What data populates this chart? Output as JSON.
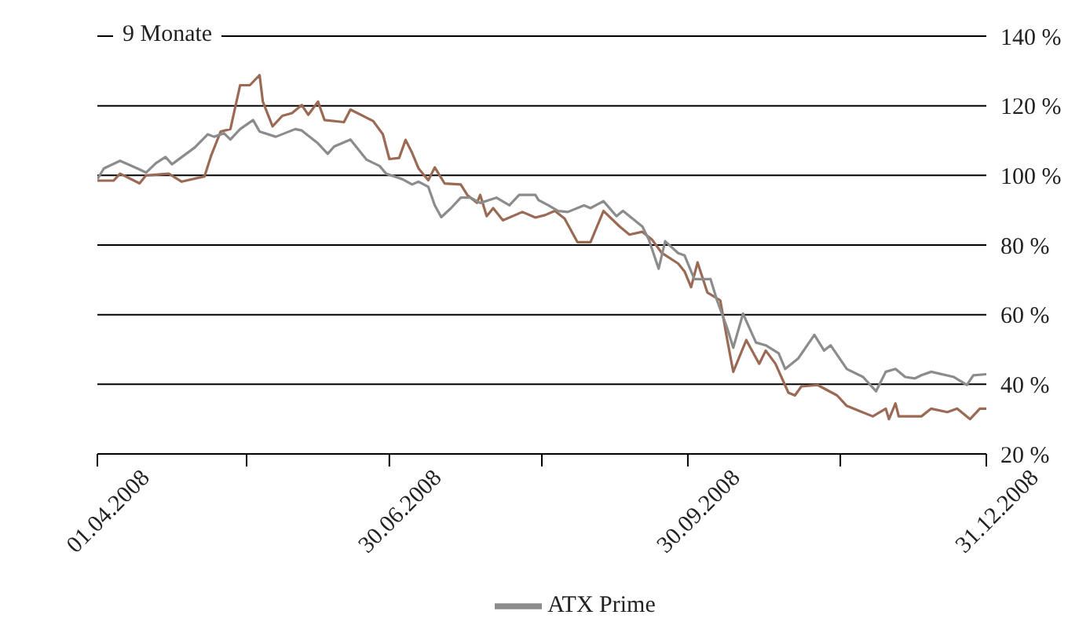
{
  "chart_data": {
    "type": "line",
    "title": "9 Monate",
    "xlim": [
      "2008-04-01",
      "2008-12-31"
    ],
    "xticks": [
      {
        "value": "2008-04-01",
        "label": "01.04.2008"
      },
      {
        "value": "2008-05-17",
        "label": null
      },
      {
        "value": "2008-06-30",
        "label": "30.06.2008"
      },
      {
        "value": "2008-08-16",
        "label": null
      },
      {
        "value": "2008-09-30",
        "label": "30.09.2008"
      },
      {
        "value": "2008-11-16",
        "label": null
      },
      {
        "value": "2008-12-31",
        "label": "31.12.2008"
      }
    ],
    "ylim": [
      20,
      140
    ],
    "yticks": [
      {
        "value": 20,
        "label": "20 %"
      },
      {
        "value": 40,
        "label": "40 %"
      },
      {
        "value": 60,
        "label": "60 %"
      },
      {
        "value": 80,
        "label": "80 %"
      },
      {
        "value": 100,
        "label": "100 %"
      },
      {
        "value": 120,
        "label": "120 %"
      },
      {
        "value": 140,
        "label": "140 %"
      }
    ],
    "grid": "y",
    "legend": "bottom",
    "marker": "none",
    "line_style": "solid",
    "series": [
      {
        "color": "#9b6a55",
        "x": [
          "2008-04-01",
          "2008-04-06",
          "2008-04-08",
          "2008-04-14",
          "2008-04-16",
          "2008-04-23",
          "2008-04-27",
          "2008-05-04",
          "2008-05-06",
          "2008-05-09",
          "2008-05-12",
          "2008-05-15",
          "2008-05-18",
          "2008-05-21",
          "2008-05-22",
          "2008-05-25",
          "2008-05-28",
          "2008-05-31",
          "2008-06-03",
          "2008-06-05",
          "2008-06-08",
          "2008-06-10",
          "2008-06-16",
          "2008-06-18",
          "2008-06-25",
          "2008-06-28",
          "2008-06-30",
          "2008-07-03",
          "2008-07-05",
          "2008-07-07",
          "2008-07-09",
          "2008-07-12",
          "2008-07-14",
          "2008-07-17",
          "2008-07-22",
          "2008-07-24",
          "2008-07-27",
          "2008-07-28",
          "2008-07-30",
          "2008-08-01",
          "2008-08-04",
          "2008-08-10",
          "2008-08-14",
          "2008-08-17",
          "2008-08-20",
          "2008-08-23",
          "2008-08-27",
          "2008-08-31",
          "2008-09-04",
          "2008-09-09",
          "2008-09-12",
          "2008-09-16",
          "2008-09-19",
          "2008-09-22",
          "2008-09-27",
          "2008-09-29",
          "2008-10-01",
          "2008-10-03",
          "2008-10-06",
          "2008-10-10",
          "2008-10-12",
          "2008-10-14",
          "2008-10-18",
          "2008-10-22",
          "2008-10-24",
          "2008-10-27",
          "2008-10-31",
          "2008-11-02",
          "2008-11-04",
          "2008-11-09",
          "2008-11-15",
          "2008-11-18",
          "2008-11-22",
          "2008-11-26",
          "2008-11-30",
          "2008-12-01",
          "2008-12-03",
          "2008-12-04",
          "2008-12-11",
          "2008-12-14",
          "2008-12-19",
          "2008-12-22",
          "2008-12-26",
          "2008-12-29",
          "2008-12-31"
        ],
        "values": [
          98.5,
          98.5,
          100.5,
          97.7,
          100,
          100.5,
          98.2,
          99.7,
          105.5,
          112.6,
          113.3,
          125.9,
          125.9,
          128.8,
          121.2,
          114.1,
          117.1,
          117.9,
          120.2,
          117.4,
          121.2,
          115.9,
          115.3,
          118.9,
          115.6,
          111.8,
          104.7,
          105,
          110.2,
          106.5,
          102,
          98.6,
          102.3,
          97.7,
          97.4,
          94.4,
          92.1,
          94.4,
          88.3,
          90.6,
          87.1,
          89.5,
          87.9,
          88.6,
          89.8,
          87.6,
          80.8,
          80.8,
          89.8,
          85.3,
          83,
          83.8,
          81.5,
          77.7,
          74.7,
          72.4,
          67.9,
          75,
          66.4,
          64.1,
          53.5,
          43.6,
          52.7,
          45.9,
          49.7,
          45.9,
          37.6,
          36.8,
          39.4,
          39.8,
          36.8,
          33.8,
          32.3,
          30.8,
          33,
          30,
          34.5,
          30.8,
          30.8,
          33,
          32,
          33,
          30,
          33,
          33
        ]
      },
      {
        "name": "ATX Prime",
        "color": "#8c8c8c",
        "x": [
          "2008-04-01",
          "2008-04-03",
          "2008-04-08",
          "2008-04-14",
          "2008-04-16",
          "2008-04-19",
          "2008-04-22",
          "2008-04-24",
          "2008-05-01",
          "2008-05-05",
          "2008-05-07",
          "2008-05-10",
          "2008-05-12",
          "2008-05-15",
          "2008-05-19",
          "2008-05-21",
          "2008-05-26",
          "2008-06-01",
          "2008-06-03",
          "2008-06-08",
          "2008-06-11",
          "2008-06-13",
          "2008-06-18",
          "2008-06-23",
          "2008-06-27",
          "2008-06-29",
          "2008-07-04",
          "2008-07-07",
          "2008-07-09",
          "2008-07-12",
          "2008-07-14",
          "2008-07-16",
          "2008-07-19",
          "2008-07-22",
          "2008-07-25",
          "2008-07-28",
          "2008-08-02",
          "2008-08-06",
          "2008-08-09",
          "2008-08-14",
          "2008-08-15",
          "2008-08-18",
          "2008-08-21",
          "2008-08-24",
          "2008-08-29",
          "2008-08-31",
          "2008-09-04",
          "2008-09-08",
          "2008-09-10",
          "2008-09-16",
          "2008-09-18",
          "2008-09-21",
          "2008-09-23",
          "2008-09-27",
          "2008-09-29",
          "2008-10-02",
          "2008-10-07",
          "2008-10-09",
          "2008-10-12",
          "2008-10-14",
          "2008-10-17",
          "2008-10-21",
          "2008-10-24",
          "2008-10-28",
          "2008-10-30",
          "2008-11-03",
          "2008-11-08",
          "2008-11-11",
          "2008-11-13",
          "2008-11-18",
          "2008-11-23",
          "2008-11-27",
          "2008-11-30",
          "2008-12-03",
          "2008-12-06",
          "2008-12-09",
          "2008-12-11",
          "2008-12-14",
          "2008-12-21",
          "2008-12-25",
          "2008-12-27",
          "2008-12-31"
        ],
        "values": [
          98.9,
          102,
          104.2,
          101.7,
          100.8,
          103.5,
          105.3,
          103.2,
          108,
          111.8,
          111.1,
          112.1,
          110.3,
          113.3,
          115.9,
          112.6,
          111.1,
          113.3,
          112.9,
          109.2,
          106.2,
          108.3,
          110.3,
          104.5,
          102.7,
          100.5,
          98.9,
          97.4,
          98.2,
          96.7,
          91.4,
          88,
          90.6,
          93.6,
          93.6,
          92.1,
          93.6,
          91.4,
          94.4,
          94.4,
          92.9,
          91.4,
          89.8,
          89.5,
          91.4,
          90.6,
          92.6,
          88.3,
          89.8,
          85.3,
          81.5,
          73.2,
          81.1,
          77.7,
          77,
          70.2,
          70.2,
          64.1,
          56.5,
          50.5,
          60.3,
          52,
          51.2,
          48.9,
          44.4,
          47.4,
          54.2,
          49.7,
          51.2,
          44.4,
          42.1,
          38,
          43.6,
          44.4,
          42.1,
          41.7,
          42.6,
          43.6,
          42.1,
          39.8,
          42.6,
          42.9
        ]
      }
    ]
  }
}
